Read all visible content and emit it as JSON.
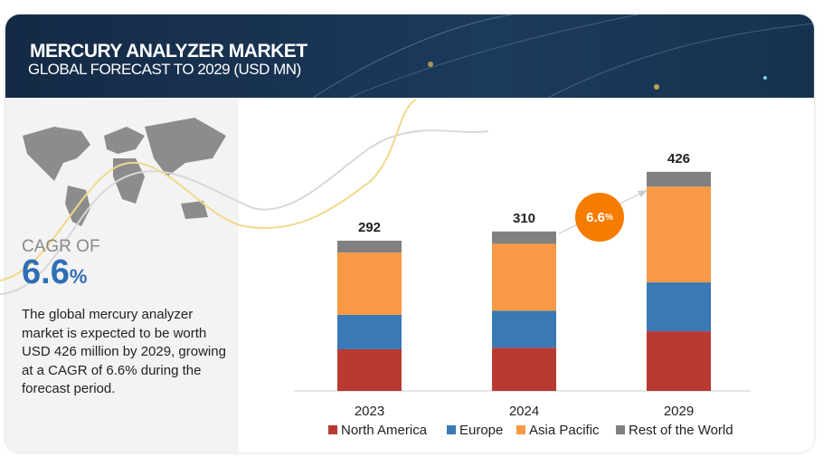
{
  "header": {
    "title": "MERCURY ANALYZER MARKET",
    "subtitle": "GLOBAL FORECAST TO 2029 (USD MN)"
  },
  "summary": {
    "cagr_label": "CAGR OF",
    "cagr_value": "6.6",
    "cagr_unit": "%",
    "description": "The global mercury analyzer market is expected to be worth USD 426 million by 2029, growing at a CAGR of 6.6% during the forecast period."
  },
  "bubble": {
    "value": "6.6",
    "unit": "%"
  },
  "chart_data": {
    "type": "bar",
    "stacked": true,
    "categories": [
      "2023",
      "2024",
      "2029"
    ],
    "totals": [
      "292",
      "310",
      "426"
    ],
    "series": [
      {
        "name": "North America",
        "color": "#b83a32",
        "values": [
          81,
          84,
          116
        ]
      },
      {
        "name": "Europe",
        "color": "#3a78b6",
        "values": [
          67,
          72,
          95
        ]
      },
      {
        "name": "Asia Pacific",
        "color": "#f89a45",
        "values": [
          121,
          130,
          186
        ]
      },
      {
        "name": "Rest of the World",
        "color": "#808080",
        "values": [
          23,
          24,
          29
        ]
      }
    ],
    "ylim": [
      0,
      450
    ],
    "legend": "bottom"
  }
}
